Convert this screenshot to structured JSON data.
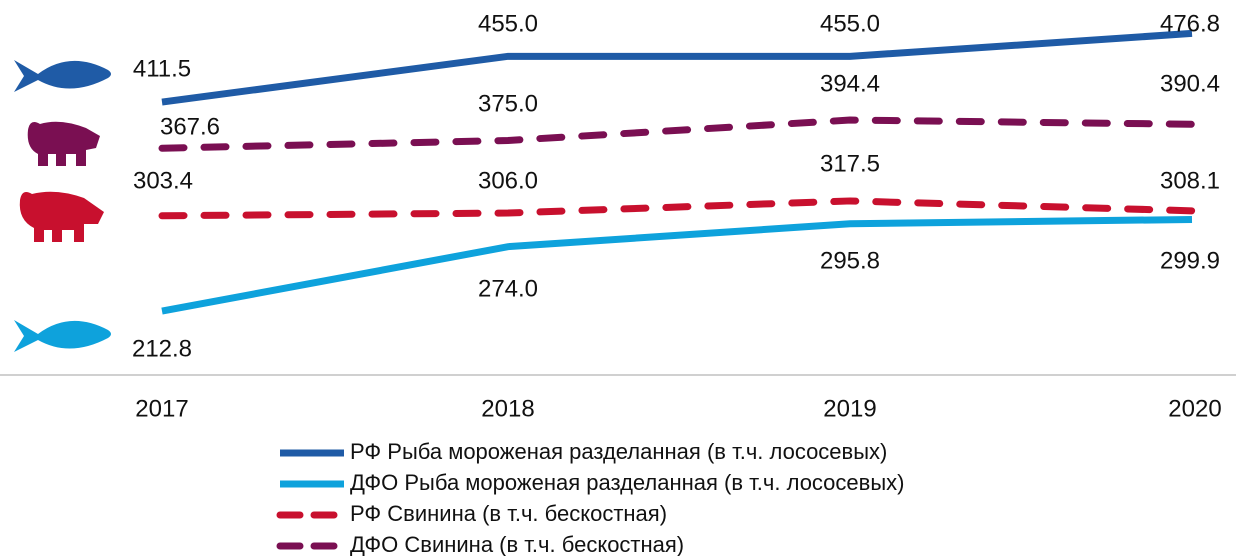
{
  "chart_data": {
    "type": "line",
    "categories": [
      "2017",
      "2018",
      "2019",
      "2020"
    ],
    "ylim": [
      152,
      500
    ],
    "series": [
      {
        "name": "РФ Рыба мороженая разделанная (в т.ч. лососевых)",
        "color": "#1f5ba6",
        "dashed": false,
        "values": [
          411.5,
          455.0,
          455.0,
          476.8
        ],
        "value_labels": [
          "411.5",
          "455.0",
          "455.0",
          "476.8"
        ]
      },
      {
        "name": "ДФО Рыба мороженая разделанная (в т.ч. лососевых)",
        "color": "#0ea2dc",
        "dashed": false,
        "values": [
          212.8,
          274.0,
          295.8,
          299.9
        ],
        "value_labels": [
          "212.8",
          "274.0",
          "295.8",
          "299.9"
        ]
      },
      {
        "name": "РФ Свинина (в т.ч. бескостная)",
        "color": "#c8102e",
        "dashed": true,
        "values": [
          303.4,
          306.0,
          317.5,
          308.1
        ],
        "value_labels": [
          "303.4",
          "306.0",
          "317.5",
          "308.1"
        ]
      },
      {
        "name": "ДФО Свинина (в т.ч. бескостная)",
        "color": "#7a0f52",
        "dashed": true,
        "values": [
          367.6,
          375.0,
          394.4,
          390.4
        ],
        "value_labels": [
          "367.6",
          "375.0",
          "394.4",
          "390.4"
        ]
      }
    ]
  }
}
